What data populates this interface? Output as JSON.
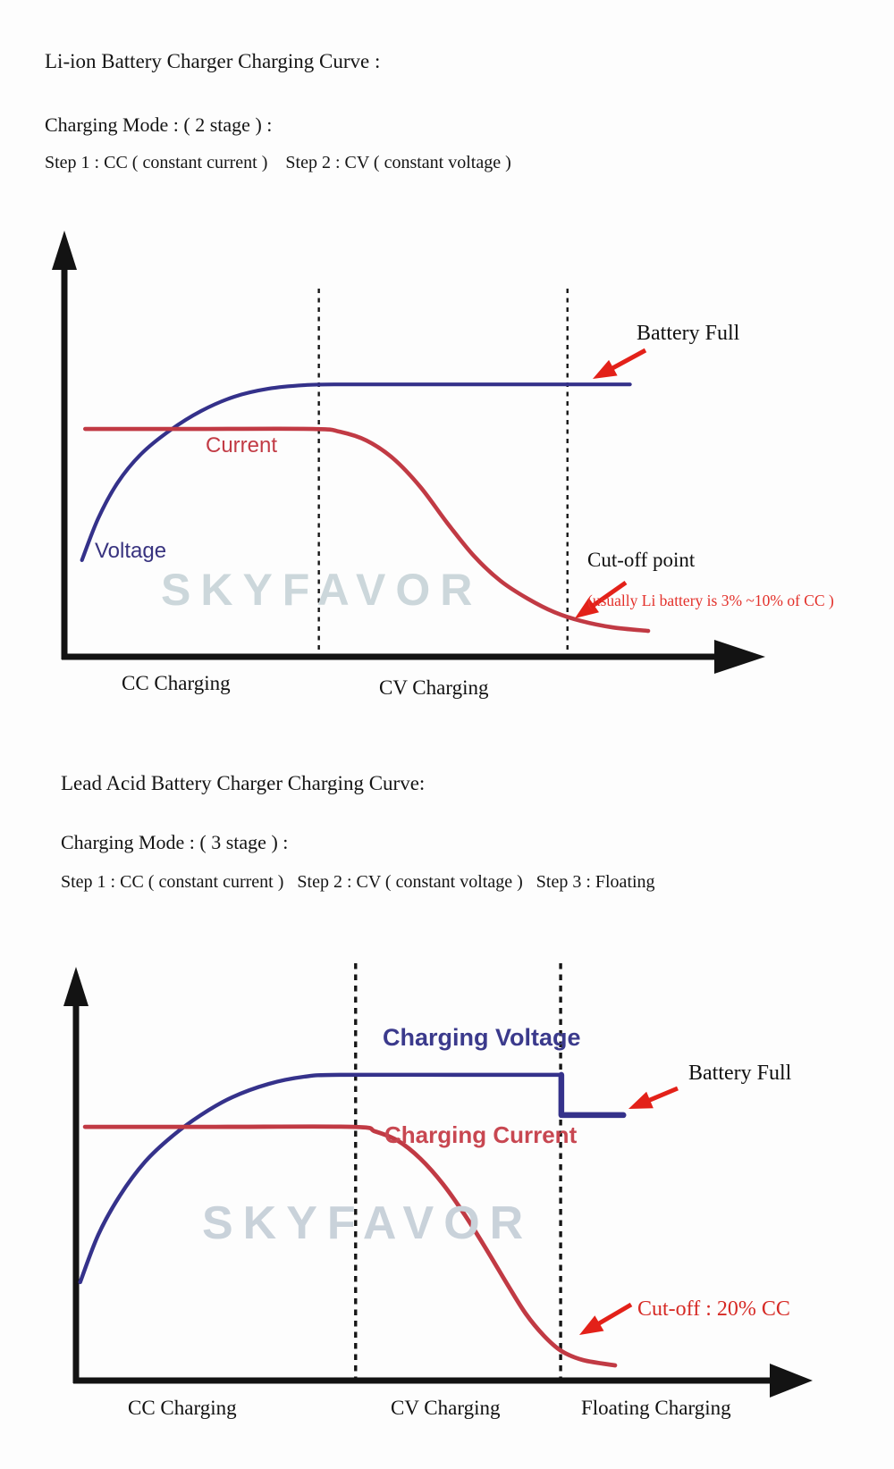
{
  "watermark": "SKYFAVOR",
  "header": {
    "title": "Li-ion Battery Charger Charging Curve :",
    "mode": "Charging Mode : ( 2 stage ) :",
    "steps": "Step 1 : CC ( constant current )    Step 2 : CV ( constant voltage )"
  },
  "section2": {
    "title": "Lead Acid Battery Charger Charging Curve:",
    "mode": "Charging Mode : ( 3 stage ) :",
    "steps": "Step 1 : CC ( constant current )   Step 2 : CV ( constant voltage )   Step 3 : Floating"
  },
  "chart_data": [
    {
      "type": "line",
      "title": "Li-ion Battery Charger Charging Curve",
      "charging_mode": "2 stage",
      "x_axis": {
        "label": "",
        "unit": "time",
        "ticks": [],
        "range": [
          0,
          1
        ]
      },
      "y_axis": {
        "label": "",
        "ticks": [],
        "range": [
          0,
          1
        ]
      },
      "grid": false,
      "stages": [
        "CC Charging",
        "CV Charging"
      ],
      "stage_boundaries_x": [
        0.391,
        0.773
      ],
      "series": [
        {
          "name": "Voltage",
          "color": "#34318a",
          "smooth": true,
          "points": [
            [
              0.027,
              0.243
            ],
            [
              0.052,
              0.348
            ],
            [
              0.082,
              0.438
            ],
            [
              0.118,
              0.51
            ],
            [
              0.162,
              0.569
            ],
            [
              0.21,
              0.618
            ],
            [
              0.261,
              0.654
            ],
            [
              0.313,
              0.674
            ],
            [
              0.368,
              0.683
            ],
            [
              0.423,
              0.685
            ],
            [
              0.6,
              0.685
            ],
            [
              0.869,
              0.685
            ]
          ]
        },
        {
          "name": "Current",
          "color": "#c13a44",
          "smooth": true,
          "points": [
            [
              0.032,
              0.573
            ],
            [
              0.2,
              0.573
            ],
            [
              0.382,
              0.573
            ],
            [
              0.423,
              0.566
            ],
            [
              0.464,
              0.544
            ],
            [
              0.505,
              0.499
            ],
            [
              0.547,
              0.427
            ],
            [
              0.588,
              0.337
            ],
            [
              0.629,
              0.254
            ],
            [
              0.67,
              0.191
            ],
            [
              0.712,
              0.146
            ],
            [
              0.753,
              0.112
            ],
            [
              0.794,
              0.09
            ],
            [
              0.842,
              0.074
            ],
            [
              0.897,
              0.065
            ]
          ]
        }
      ],
      "annotations": [
        {
          "text": "Battery Full",
          "color": "#111111",
          "points_to": "voltage plateau"
        },
        {
          "text": "Cut-off point",
          "color": "#111111",
          "points_to": "current minimum at stage boundary"
        },
        {
          "text": "(usually Li battery is 3% ~10% of CC )",
          "color": "#e3302a"
        }
      ]
    },
    {
      "type": "line",
      "title": "Lead Acid Battery Charger Charging Curve",
      "charging_mode": "3 stage",
      "x_axis": {
        "label": "",
        "unit": "time",
        "ticks": [],
        "range": [
          0,
          1
        ]
      },
      "y_axis": {
        "label": "",
        "ticks": [],
        "range": [
          0,
          1
        ]
      },
      "grid": false,
      "stages": [
        "CC Charging",
        "CV Charging",
        "Floating Charging"
      ],
      "stage_boundaries_x": [
        0.401,
        0.695
      ],
      "series": [
        {
          "name": "Charging Voltage",
          "color": "#35328b",
          "smooth": true,
          "points": [
            [
              0.006,
              0.259
            ],
            [
              0.032,
              0.384
            ],
            [
              0.063,
              0.487
            ],
            [
              0.099,
              0.576
            ],
            [
              0.137,
              0.642
            ],
            [
              0.179,
              0.699
            ],
            [
              0.224,
              0.746
            ],
            [
              0.276,
              0.781
            ],
            [
              0.327,
              0.8
            ],
            [
              0.378,
              0.805
            ],
            [
              0.55,
              0.805
            ],
            [
              0.696,
              0.805
            ]
          ]
        },
        {
          "name": "Charging Voltage (floating step)",
          "color": "#35328b",
          "smooth": false,
          "points": [
            [
              0.696,
              0.805
            ],
            [
              0.696,
              0.699
            ],
            [
              0.785,
              0.699
            ]
          ]
        },
        {
          "name": "Charging Current",
          "color": "#c13a44",
          "smooth": true,
          "points": [
            [
              0.013,
              0.668
            ],
            [
              0.2,
              0.668
            ],
            [
              0.397,
              0.668
            ],
            [
              0.429,
              0.656
            ],
            [
              0.462,
              0.631
            ],
            [
              0.494,
              0.584
            ],
            [
              0.526,
              0.518
            ],
            [
              0.558,
              0.435
            ],
            [
              0.59,
              0.341
            ],
            [
              0.619,
              0.252
            ],
            [
              0.645,
              0.176
            ],
            [
              0.671,
              0.118
            ],
            [
              0.696,
              0.078
            ],
            [
              0.727,
              0.054
            ],
            [
              0.773,
              0.04
            ]
          ]
        }
      ],
      "annotations": [
        {
          "text": "Battery Full",
          "color": "#111111",
          "points_to": "floating voltage level"
        },
        {
          "text": "Cut-off : 20% CC",
          "color": "#d62a25",
          "points_to": "current minimum at stage boundary"
        }
      ]
    }
  ]
}
